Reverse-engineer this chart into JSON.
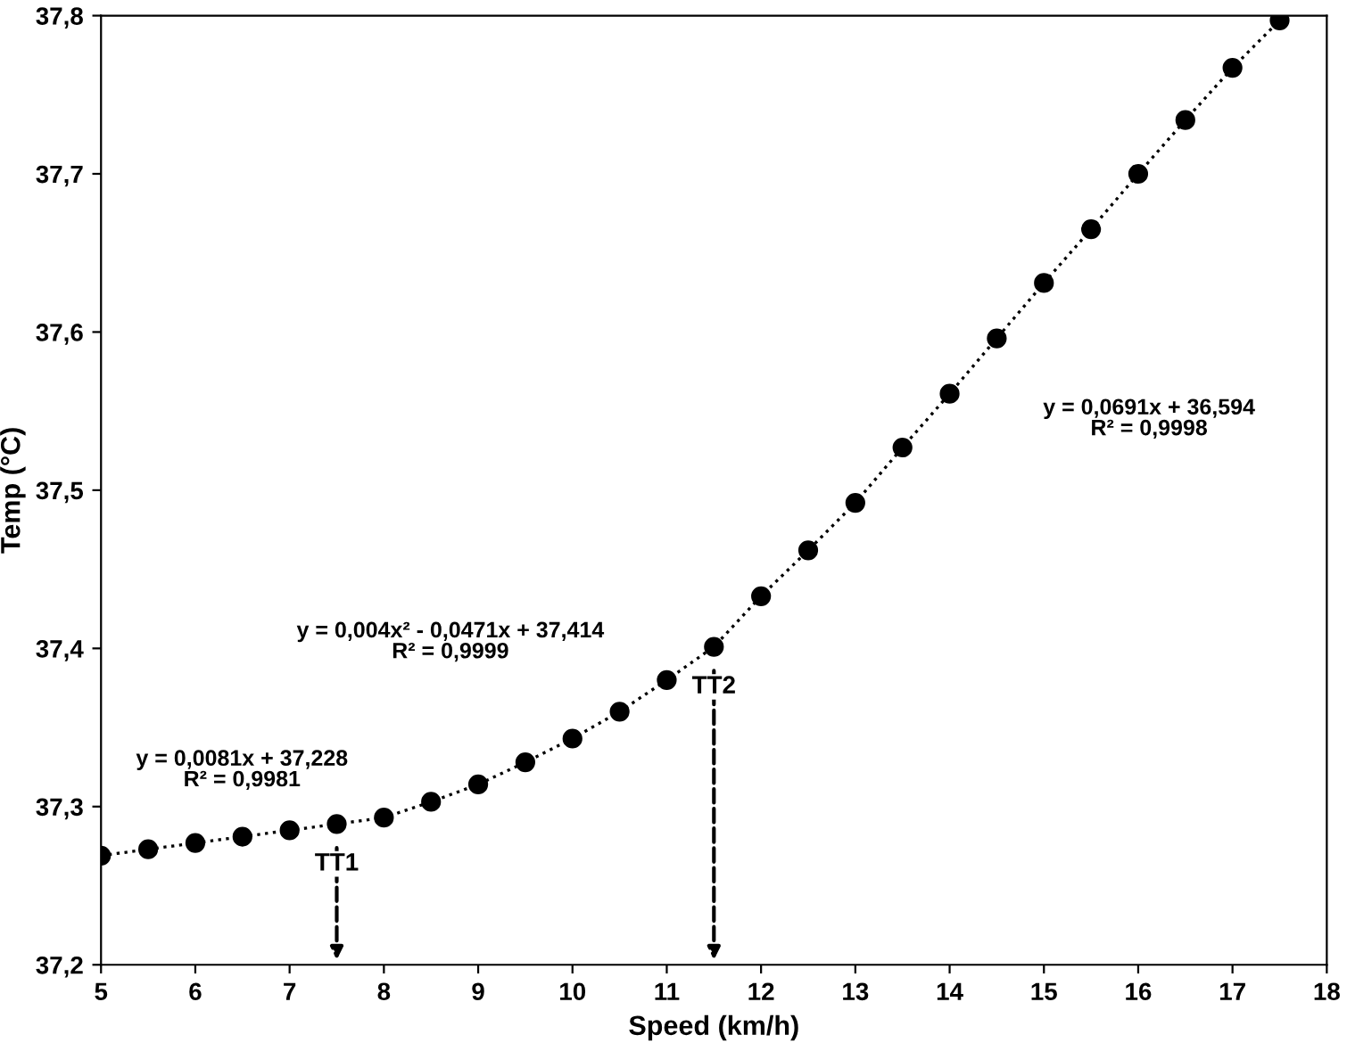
{
  "chart_data": {
    "type": "line",
    "xlabel": "Speed (km/h)",
    "ylabel": "Temp (°C)",
    "x": [
      5,
      5.5,
      6,
      6.5,
      7,
      7.5,
      8,
      8.5,
      9,
      9.5,
      10,
      10.5,
      11,
      11.5,
      12,
      12.5,
      13,
      13.5,
      14,
      14.5,
      15,
      15.5,
      16,
      16.5,
      17,
      17.5
    ],
    "series": [
      {
        "color": "#000000",
        "values": [
          37.269,
          37.273,
          37.277,
          37.281,
          37.285,
          37.289,
          37.293,
          37.303,
          37.314,
          37.328,
          37.343,
          37.36,
          37.38,
          37.401,
          37.433,
          37.462,
          37.492,
          37.527,
          37.561,
          37.596,
          37.631,
          37.665,
          37.7,
          37.734,
          37.767,
          37.797
        ]
      }
    ],
    "marker": "circle",
    "line_style": "dotted",
    "grid": false,
    "legend": false,
    "xlim": [
      5,
      18
    ],
    "xticks": [
      5,
      6,
      7,
      8,
      9,
      10,
      11,
      12,
      13,
      14,
      15,
      16,
      17,
      18
    ],
    "ylim": [
      37.2,
      37.8
    ],
    "yticks": [
      {
        "value": 37.2,
        "label": "37,2"
      },
      {
        "value": 37.3,
        "label": "37,3"
      },
      {
        "value": 37.4,
        "label": "37,4"
      },
      {
        "value": 37.5,
        "label": "37,5"
      },
      {
        "value": 37.6,
        "label": "37,6"
      },
      {
        "value": 37.7,
        "label": "37,7"
      },
      {
        "value": 37.8,
        "label": "37,8"
      }
    ],
    "annotations": [
      "y = 0,0081x + 37,228\nR² = 0,9981",
      "y = 0,004x² - 0,0471x + 37,414\nR² = 0,9999",
      "y = 0,0691x + 36,594\nR² = 0,9998",
      {
        "text": "TT1",
        "x": 7.5,
        "y": 37.289
      },
      {
        "text": "TT2",
        "x": 11.5,
        "y": 37.401
      }
    ]
  }
}
